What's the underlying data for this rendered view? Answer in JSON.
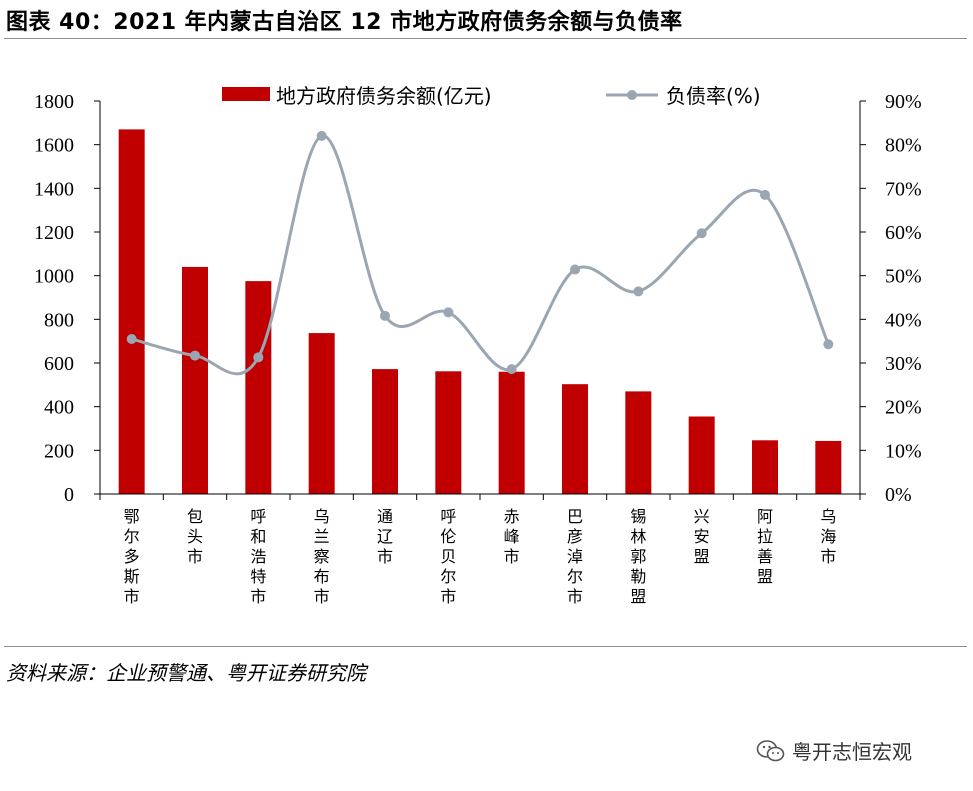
{
  "header": {
    "title": "图表 40：2021 年内蒙古自治区 12 市地方政府债务余额与负债率"
  },
  "footer": {
    "source": "资料来源：企业预警通、粤开证券研究院",
    "watermark": "粤开志恒宏观",
    "watermark_icon": "wechat-icon"
  },
  "chart_data": {
    "type": "bar",
    "categories": [
      "鄂尔多斯市",
      "包头市",
      "呼和浩特市",
      "乌兰察布市",
      "通辽市",
      "呼伦贝尔市",
      "赤峰市",
      "巴彦淖尔市",
      "锡林郭勒盟",
      "兴安盟",
      "阿拉善盟",
      "乌海市"
    ],
    "series": [
      {
        "name": "地方政府债务余额(亿元)",
        "type": "bar",
        "axis": "left",
        "color": "#c00000",
        "values": [
          1670,
          1040,
          975,
          737,
          572,
          562,
          560,
          503,
          470,
          355,
          246,
          243
        ]
      },
      {
        "name": "负债率(%)",
        "type": "line",
        "axis": "right",
        "color": "#9aa6b2",
        "values": [
          35.5,
          31.7,
          31.3,
          82.0,
          40.8,
          41.6,
          28.6,
          51.4,
          46.4,
          59.7,
          68.5,
          34.3
        ]
      }
    ],
    "y_left": {
      "min": 0,
      "max": 1800,
      "step": 200,
      "ticks": [
        "0",
        "200",
        "400",
        "600",
        "800",
        "1000",
        "1200",
        "1400",
        "1600",
        "1800"
      ]
    },
    "y_right": {
      "min": 0,
      "max": 90,
      "step": 10,
      "ticks": [
        "0%",
        "10%",
        "20%",
        "30%",
        "40%",
        "50%",
        "60%",
        "70%",
        "80%",
        "90%"
      ]
    },
    "xlabel": "",
    "ylabel": "",
    "grid": false,
    "legend_position": "top"
  }
}
